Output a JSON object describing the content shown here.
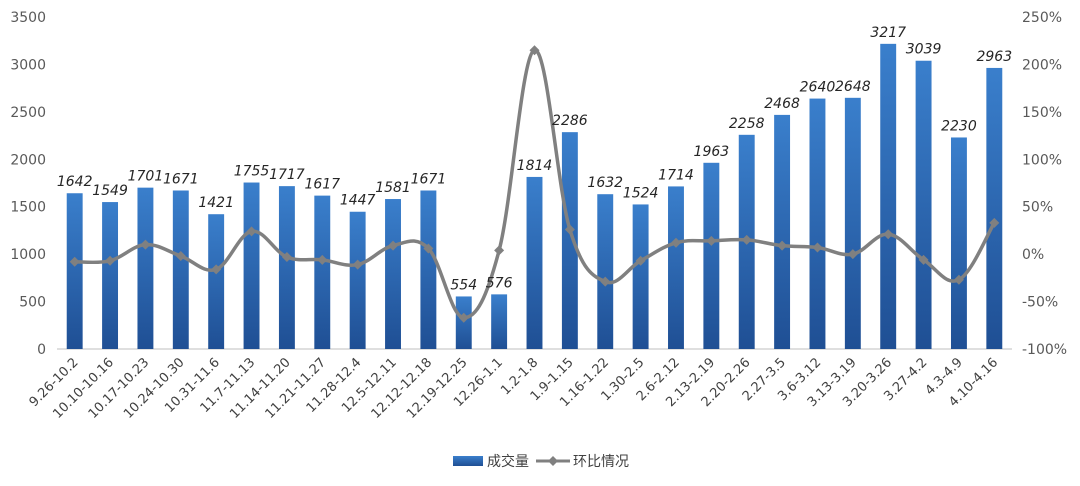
{
  "chart_data": {
    "type": "bar",
    "categories": [
      "9.26-10.2",
      "10.10-10.16",
      "10.17-10.23",
      "10.24-10.30",
      "10.31-11.6",
      "11.7-11.13",
      "11.14-11.20",
      "11.21-11.27",
      "11.28-12.4",
      "12.5-12.11",
      "12.12-12.18",
      "12.19-12.25",
      "12.26-1.1",
      "1.2-1.8",
      "1.9-1.15",
      "1.16-1.22",
      "1.30-2.5",
      "2.6-2.12",
      "2.13-2.19",
      "2.20-2.26",
      "2.27-3.5",
      "3.6-3.12",
      "3.13-3.19",
      "3.20-3.26",
      "3.27-4.2",
      "4.3-4.9",
      "4.10-4.16"
    ],
    "series": [
      {
        "name": "成交量",
        "type": "bar",
        "axis": "left",
        "color": "#2e6bb8",
        "values": [
          1642,
          1549,
          1701,
          1671,
          1421,
          1755,
          1717,
          1617,
          1447,
          1581,
          1671,
          554,
          576,
          1814,
          2286,
          1632,
          1524,
          1714,
          1963,
          2258,
          2468,
          2640,
          2648,
          3217,
          3039,
          2230,
          2963
        ]
      },
      {
        "name": "环比情况",
        "type": "line",
        "axis": "right",
        "color": "#808080",
        "values": [
          -0.08,
          -0.07,
          0.1,
          -0.02,
          -0.16,
          0.24,
          -0.03,
          -0.06,
          -0.11,
          0.09,
          0.06,
          -0.67,
          0.04,
          2.15,
          0.26,
          -0.29,
          -0.07,
          0.12,
          0.14,
          0.15,
          0.09,
          0.07,
          0.0,
          0.21,
          -0.06,
          -0.27,
          0.33
        ]
      }
    ],
    "y_left": {
      "ylim": [
        0,
        3500
      ],
      "ticks": [
        0,
        500,
        1000,
        1500,
        2000,
        2500,
        3000,
        3500
      ],
      "tick_labels": [
        "0",
        "500",
        "1000",
        "1500",
        "2000",
        "2500",
        "3000",
        "3500"
      ]
    },
    "y_right": {
      "ylim": [
        -1.0,
        2.5
      ],
      "ticks": [
        -1.0,
        -0.5,
        0,
        0.5,
        1.0,
        1.5,
        2.0,
        2.5
      ],
      "tick_labels": [
        "-100%",
        "-50%",
        "0%",
        "50%",
        "100%",
        "150%",
        "200%",
        "250%"
      ]
    },
    "grid": false,
    "legend_position": "bottom-center",
    "data_labels": true
  }
}
